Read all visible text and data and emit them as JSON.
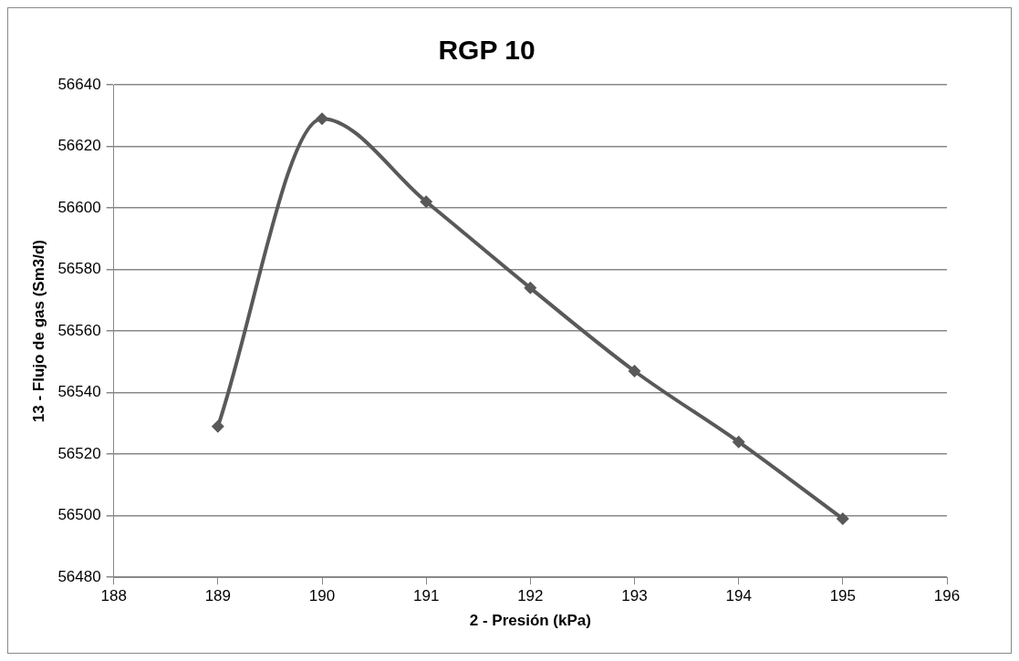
{
  "chart_data": {
    "type": "line",
    "title": "RGP 10",
    "xlabel": "2 - Presión (kPa)",
    "ylabel": "13 - Flujo de gas (Sm3/d)",
    "x": [
      189,
      190,
      191,
      192,
      193,
      194,
      195
    ],
    "series": [
      {
        "color": "#595959",
        "values": [
          56529,
          56629,
          56602,
          56574,
          56547,
          56524,
          56499
        ]
      }
    ],
    "xlim": [
      188,
      196
    ],
    "xticks": [
      188,
      189,
      190,
      191,
      192,
      193,
      194,
      195,
      196
    ],
    "ylim": [
      56480,
      56640
    ],
    "yticks": [
      56480,
      56500,
      56520,
      56540,
      56560,
      56580,
      56600,
      56620,
      56640
    ],
    "grid": "y",
    "legend": false,
    "marker": "diamond",
    "line_style": "solid"
  }
}
